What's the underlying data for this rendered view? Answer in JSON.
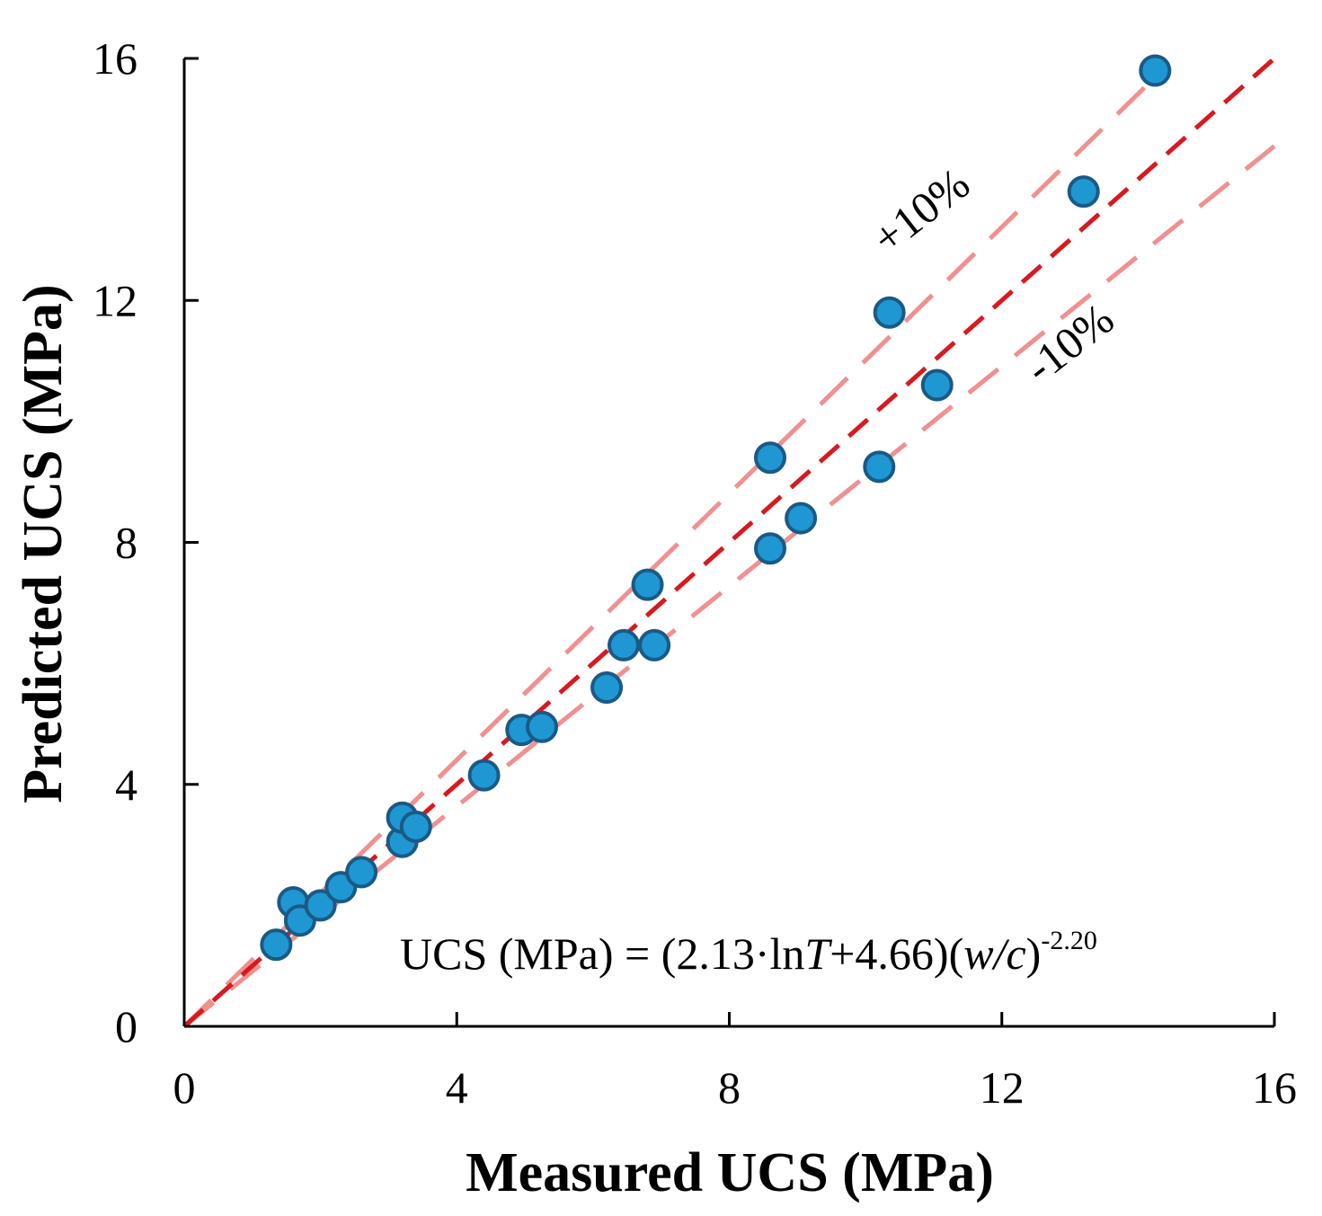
{
  "chart_data": {
    "type": "scatter",
    "title": "",
    "xlabel": "Measured UCS (MPa)",
    "ylabel": "Predicted UCS (MPa)",
    "xlim": [
      0,
      16
    ],
    "ylim": [
      0,
      16
    ],
    "xticks": [
      "0",
      "4",
      "8",
      "12",
      "16"
    ],
    "yticks": [
      "0",
      "4",
      "8",
      "12",
      "16"
    ],
    "grid": false,
    "colors": {
      "point_fill": "#1f97d3",
      "point_stroke": "#1a5a85",
      "line_1to1": "#d8191f",
      "line_bounds": "#f28f8f"
    },
    "points": [
      {
        "x": 1.35,
        "y": 1.35
      },
      {
        "x": 1.6,
        "y": 2.05
      },
      {
        "x": 1.7,
        "y": 1.75
      },
      {
        "x": 2.0,
        "y": 2.0
      },
      {
        "x": 2.3,
        "y": 2.3
      },
      {
        "x": 2.6,
        "y": 2.55
      },
      {
        "x": 3.2,
        "y": 3.05
      },
      {
        "x": 3.2,
        "y": 3.45
      },
      {
        "x": 3.4,
        "y": 3.3
      },
      {
        "x": 4.4,
        "y": 4.15
      },
      {
        "x": 4.95,
        "y": 4.9
      },
      {
        "x": 5.25,
        "y": 4.95
      },
      {
        "x": 6.2,
        "y": 5.6
      },
      {
        "x": 6.45,
        "y": 6.3
      },
      {
        "x": 6.8,
        "y": 7.3
      },
      {
        "x": 6.9,
        "y": 6.3
      },
      {
        "x": 8.6,
        "y": 9.4
      },
      {
        "x": 8.6,
        "y": 7.9
      },
      {
        "x": 9.05,
        "y": 8.4
      },
      {
        "x": 10.2,
        "y": 9.25
      },
      {
        "x": 10.35,
        "y": 11.8
      },
      {
        "x": 11.05,
        "y": 10.6
      },
      {
        "x": 13.2,
        "y": 13.8
      },
      {
        "x": 14.25,
        "y": 15.8
      }
    ],
    "series": [
      {
        "name": "1:1 line",
        "x": [
          0,
          16
        ],
        "y": [
          0,
          16
        ],
        "style": "dashed"
      },
      {
        "name": "+10%",
        "x": [
          0,
          14.35
        ],
        "y": [
          0,
          15.8
        ],
        "style": "dashed"
      },
      {
        "name": "-10%",
        "x": [
          0,
          16
        ],
        "y": [
          0,
          14.55
        ],
        "style": "dashed"
      }
    ],
    "annotations": {
      "plus_label": "+10%",
      "minus_label": "-10%",
      "equation": {
        "prefix": "UCS (MPa) = (2.13·ln",
        "var_T": "T",
        "mid": "+4.66)(",
        "var_wc": "w/c",
        "close": ")",
        "exponent": "-2.20"
      }
    }
  }
}
